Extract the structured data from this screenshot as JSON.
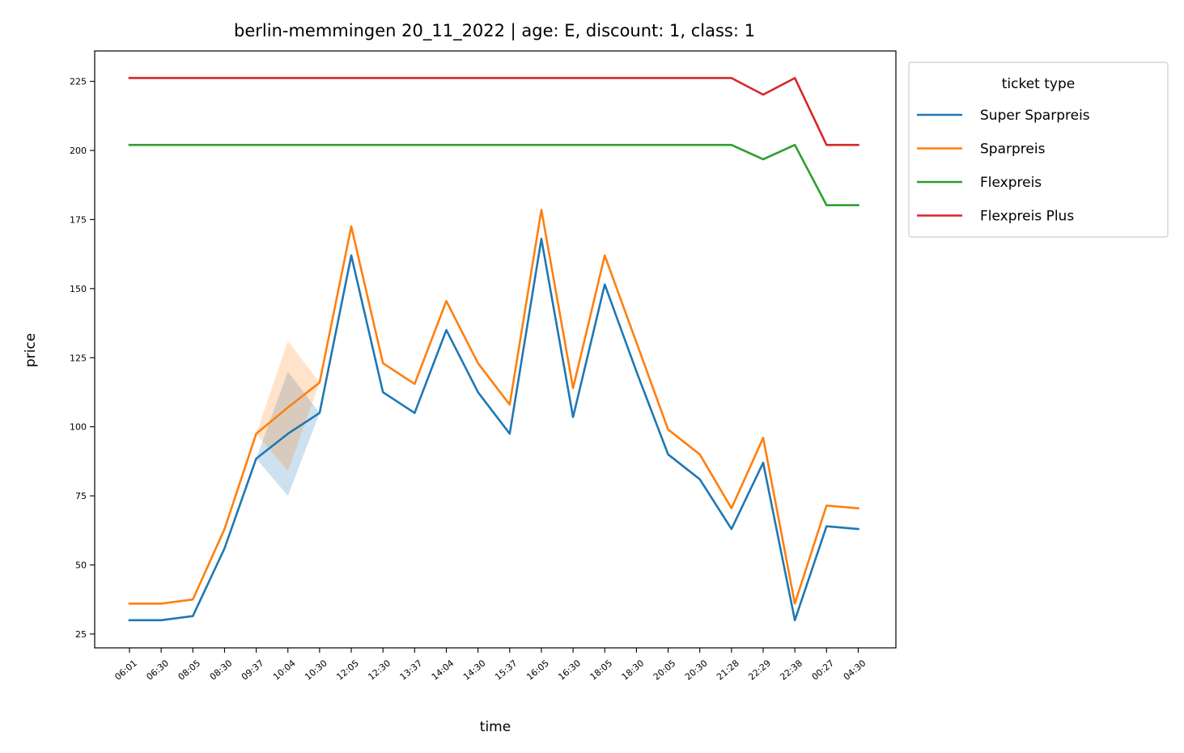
{
  "chart_data": {
    "type": "line",
    "title": "berlin-memmingen 20_11_2022 | age: E, discount: 1, class: 1",
    "xlabel": "time",
    "ylabel": "price",
    "categories": [
      "06:01",
      "06:30",
      "08:05",
      "08:30",
      "09:37",
      "10:04",
      "10:30",
      "12:05",
      "12:30",
      "13:37",
      "14:04",
      "14:30",
      "15:37",
      "16:05",
      "16:30",
      "18:05",
      "18:30",
      "20:05",
      "20:30",
      "21:28",
      "22:29",
      "22:38",
      "00:27",
      "04:30"
    ],
    "ylim": [
      20,
      236
    ],
    "yticks": [
      25,
      50,
      75,
      100,
      125,
      150,
      175,
      200,
      225
    ],
    "legend": {
      "title": "ticket type",
      "placement": "outside upper right"
    },
    "grid": false,
    "series": [
      {
        "name": "Super Sparpreis",
        "color": "#1f77b4",
        "values": [
          30,
          30,
          31.5,
          56,
          88.5,
          97.5,
          105,
          162,
          112.5,
          105,
          135,
          112.5,
          97.5,
          168,
          103.5,
          151.5,
          120,
          90,
          81,
          63,
          87,
          30,
          64,
          63
        ],
        "band": {
          "category_index": 5,
          "low": 75,
          "high": 120
        }
      },
      {
        "name": "Sparpreis",
        "color": "#ff7f0e",
        "values": [
          36,
          36,
          37.5,
          63,
          97.5,
          107,
          116,
          172.5,
          123,
          115.5,
          145.5,
          123,
          108,
          178.5,
          114,
          162,
          130.5,
          99,
          90,
          70.5,
          96,
          36,
          71.5,
          70.5
        ],
        "band": {
          "category_index": 5,
          "low": 84,
          "high": 131
        }
      },
      {
        "name": "Flexpreis",
        "color": "#2ca02c",
        "values": [
          202,
          202,
          202,
          202,
          202,
          202,
          202,
          202,
          202,
          202,
          202,
          202,
          202,
          202,
          202,
          202,
          202,
          202,
          202,
          202,
          196.8,
          202,
          180.2,
          180.2
        ]
      },
      {
        "name": "Flexpreis Plus",
        "color": "#d62728",
        "values": [
          226.2,
          226.2,
          226.2,
          226.2,
          226.2,
          226.2,
          226.2,
          226.2,
          226.2,
          226.2,
          226.2,
          226.2,
          226.2,
          226.2,
          226.2,
          226.2,
          226.2,
          226.2,
          226.2,
          226.2,
          220.2,
          226.2,
          202,
          202
        ]
      }
    ]
  }
}
